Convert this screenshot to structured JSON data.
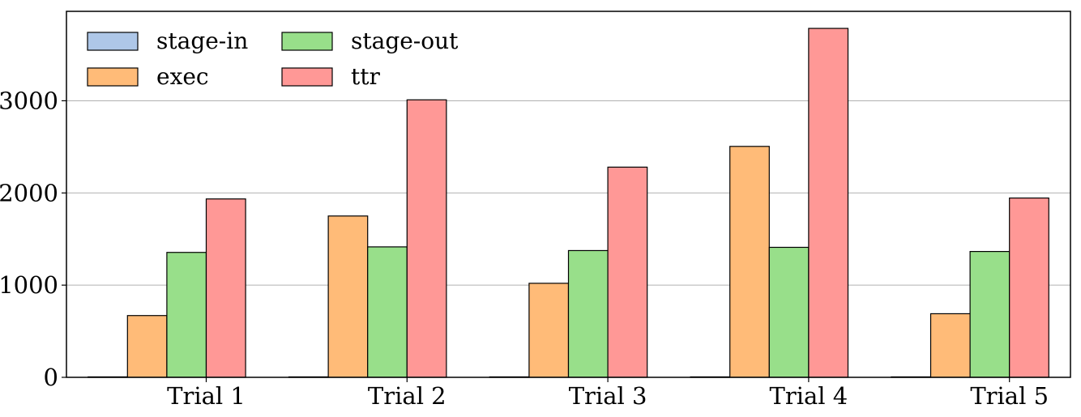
{
  "chart_data": {
    "type": "bar",
    "categories": [
      "Trial 1",
      "Trial 2",
      "Trial 3",
      "Trial 4",
      "Trial 5"
    ],
    "series": [
      {
        "name": "stage-in",
        "color": "#aec7e8",
        "values": [
          5,
          5,
          5,
          5,
          5
        ]
      },
      {
        "name": "exec",
        "color": "#ffbb78",
        "values": [
          670,
          1750,
          1020,
          2505,
          690
        ]
      },
      {
        "name": "stage-out",
        "color": "#98df8a",
        "values": [
          1355,
          1415,
          1375,
          1410,
          1365
        ]
      },
      {
        "name": "ttr",
        "color": "#ff9896",
        "values": [
          1935,
          3010,
          2280,
          3785,
          1945
        ]
      }
    ],
    "yticks": [
      0,
      1000,
      2000,
      3000
    ],
    "ylim": [
      0,
      3970
    ],
    "title": "",
    "xlabel": "",
    "ylabel": "",
    "grid": "y-major",
    "legend_position": "upper-left"
  }
}
